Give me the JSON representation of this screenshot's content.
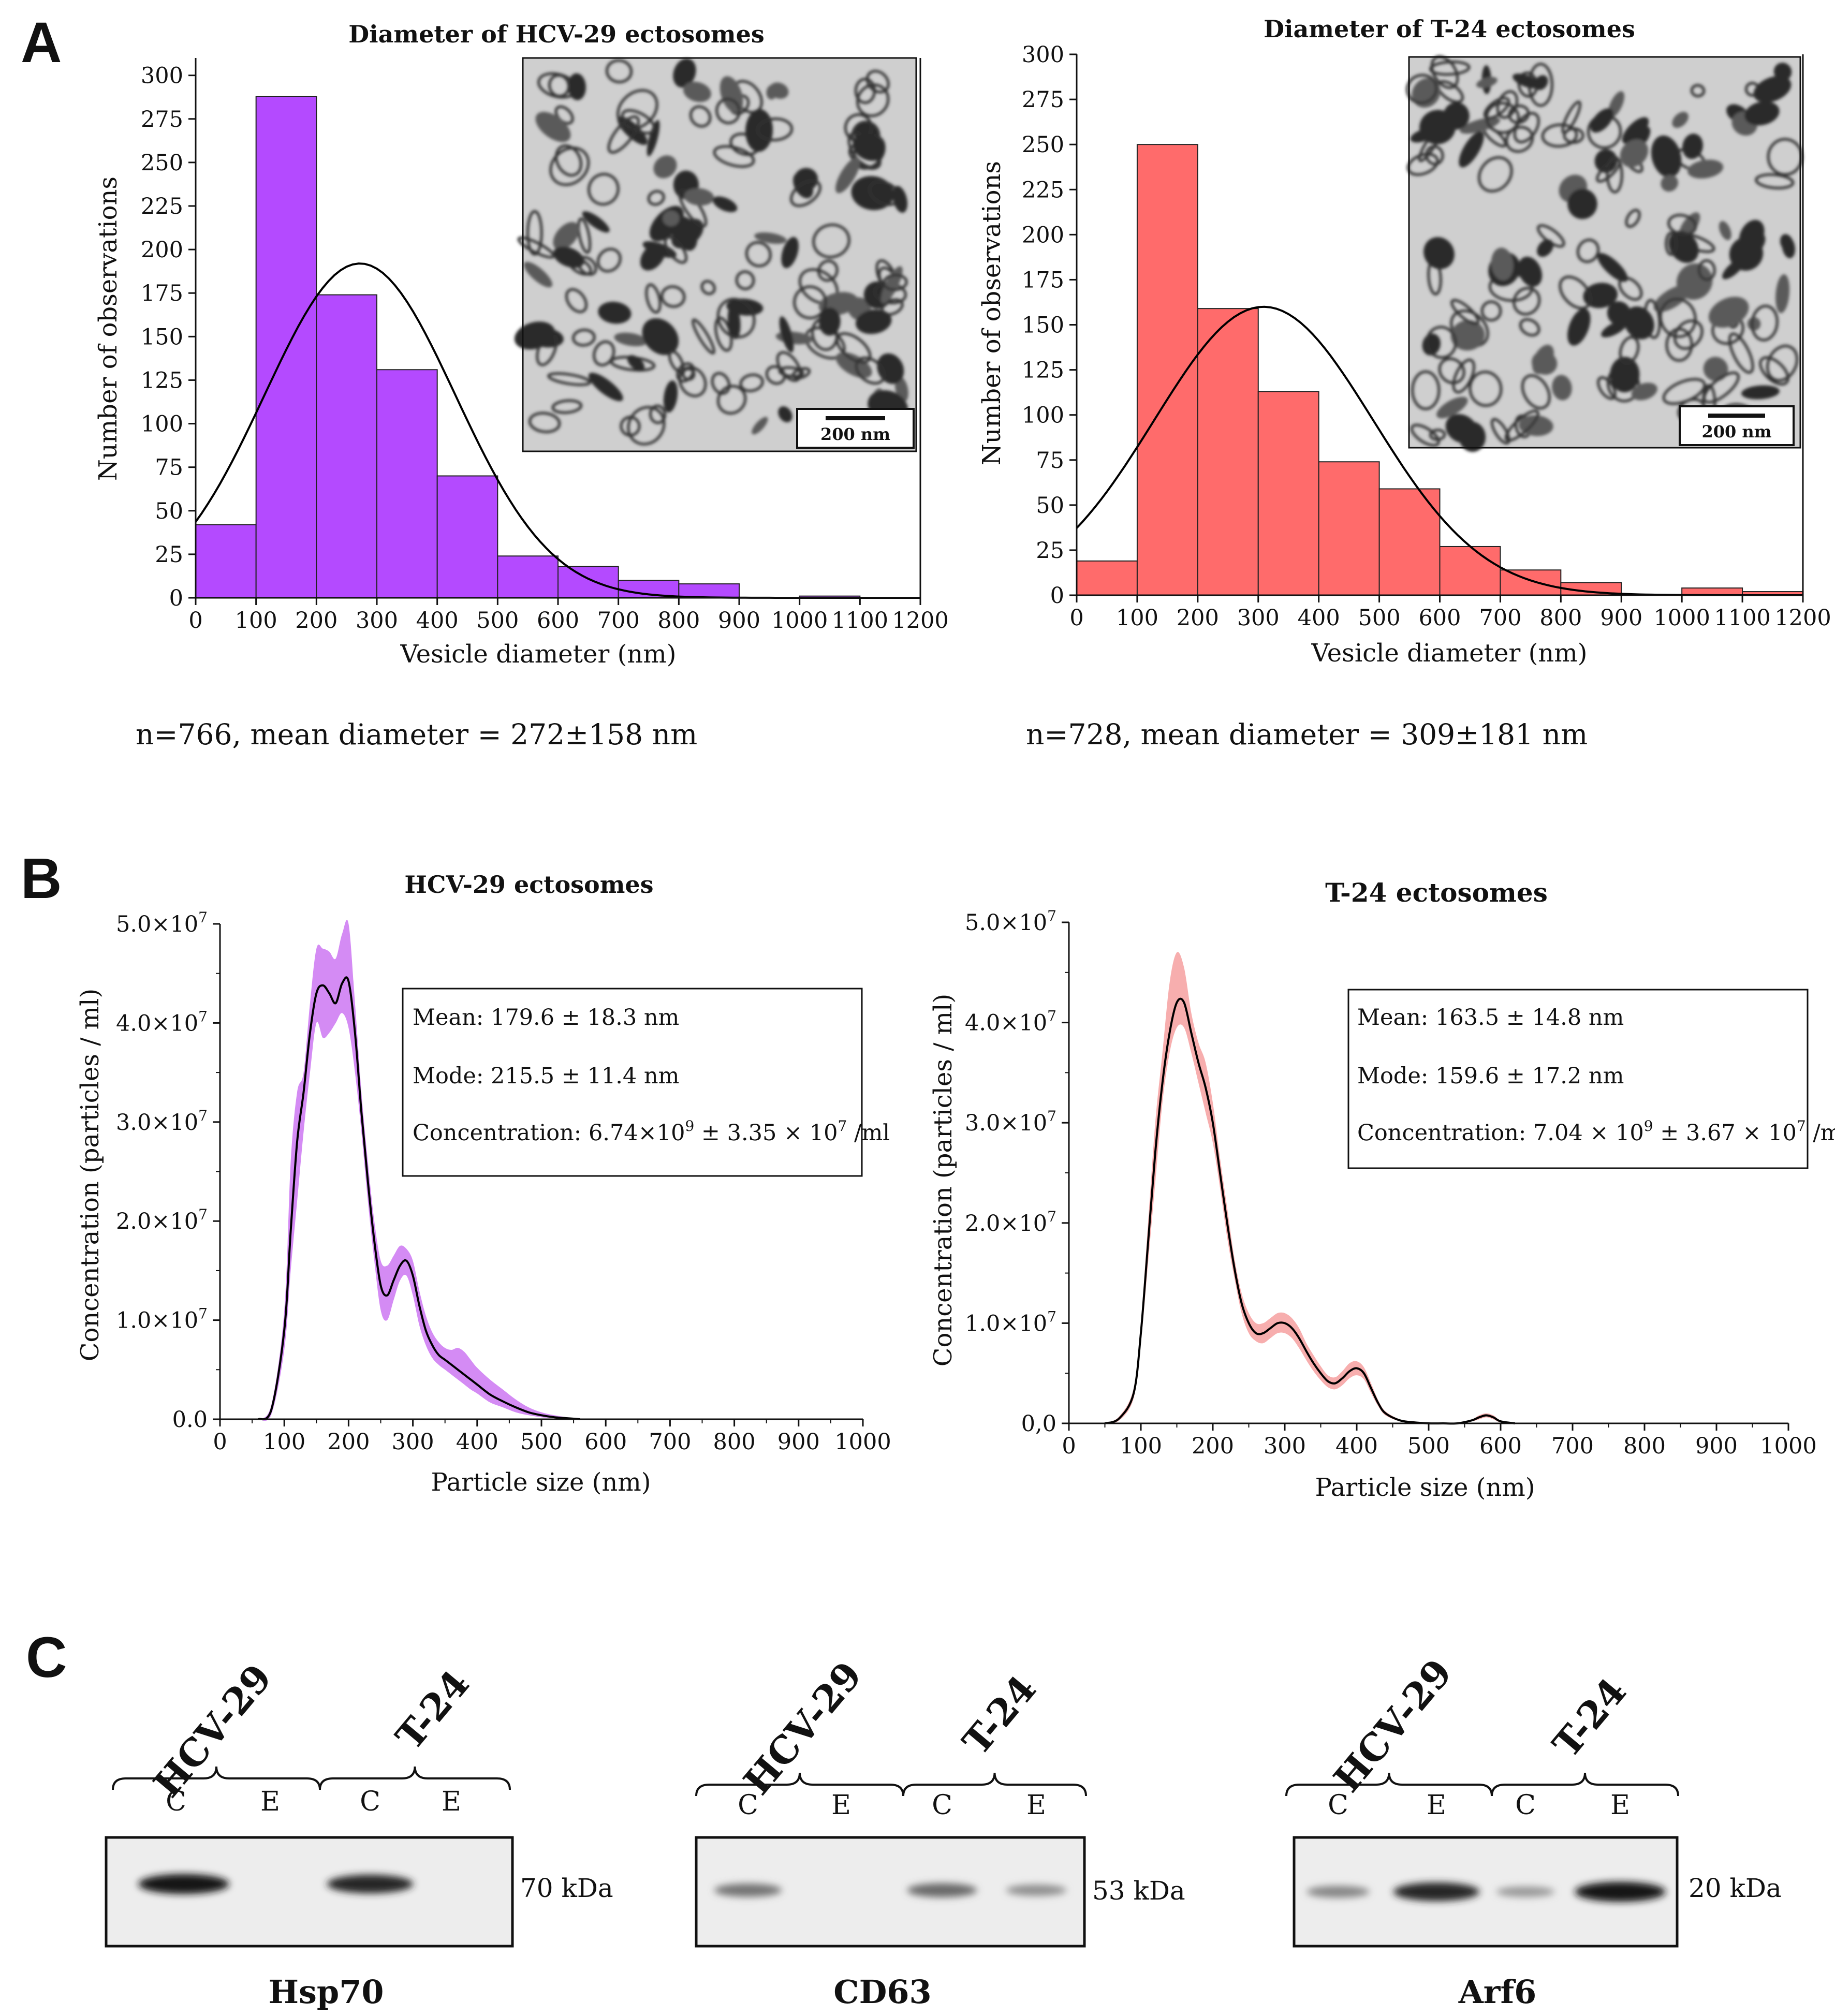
{
  "panel_labels": {
    "a": "A",
    "b": "B",
    "c": "C"
  },
  "colors": {
    "hcv": "#b44aff",
    "t24": "#ff6b6b",
    "hcv_band": "#cc77f2",
    "t24_band": "#f6a0a0",
    "curve": "#000000"
  },
  "chart_data": [
    {
      "id": "hist_hcv",
      "type": "bar",
      "title": "Diameter of HCV-29 ectosomes",
      "xlabel": "Vesicle diameter (nm)",
      "ylabel": "Number of observations",
      "bin_edges": [
        0,
        100,
        200,
        300,
        400,
        500,
        600,
        700,
        800,
        900,
        1000,
        1100
      ],
      "values": [
        42,
        288,
        174,
        131,
        70,
        24,
        18,
        10,
        8,
        0,
        1
      ],
      "xlim": [
        0,
        1200
      ],
      "ylim": [
        0,
        310
      ],
      "xticks": [
        0,
        100,
        200,
        300,
        400,
        500,
        600,
        700,
        800,
        900,
        1000,
        1100,
        1200
      ],
      "xtick_labels": [
        "0",
        "100",
        "200",
        "300",
        "400",
        "500",
        "600",
        "700",
        "800",
        "900",
        "1000",
        "1100",
        "1200"
      ],
      "yticks": [
        0,
        25,
        50,
        75,
        100,
        125,
        150,
        175,
        200,
        225,
        250,
        275,
        300
      ],
      "ytick_labels": [
        "0",
        "25",
        "50",
        "75",
        "100",
        "125",
        "150",
        "175",
        "200",
        "225",
        "250",
        "275",
        "300"
      ],
      "normal_fit": {
        "mean": 272,
        "sd": 158,
        "peak": 192
      },
      "inset": {
        "label": "TEM micrograph of HCV-29 ectosomes",
        "scale_bar": "200 nm"
      },
      "caption": "n=766, mean diameter = 272±158 nm"
    },
    {
      "id": "hist_t24",
      "type": "bar",
      "title": "Diameter of T-24 ectosomes",
      "xlabel": "Vesicle diameter (nm)",
      "ylabel": "Number of observations",
      "bin_edges": [
        0,
        100,
        200,
        300,
        400,
        500,
        600,
        700,
        800,
        900,
        1000,
        1100,
        1200
      ],
      "values": [
        19,
        250,
        159,
        113,
        74,
        59,
        27,
        14,
        7,
        0,
        4,
        2
      ],
      "xlim": [
        0,
        1200
      ],
      "ylim": [
        0,
        300
      ],
      "xticks": [
        0,
        100,
        200,
        300,
        400,
        500,
        600,
        700,
        800,
        900,
        1000,
        1100,
        1200
      ],
      "xtick_labels": [
        "0",
        "100",
        "200",
        "300",
        "400",
        "500",
        "600",
        "700",
        "800",
        "900",
        "1000",
        "1100",
        "1200"
      ],
      "yticks": [
        0,
        25,
        50,
        75,
        100,
        125,
        150,
        175,
        200,
        225,
        250,
        275,
        300
      ],
      "ytick_labels": [
        "0",
        "25",
        "50",
        "75",
        "100",
        "125",
        "150",
        "175",
        "200",
        "225",
        "250",
        "275",
        "300"
      ],
      "normal_fit": {
        "mean": 309,
        "sd": 181,
        "peak": 160
      },
      "inset": {
        "label": "TEM micrograph of T-24 ectosomes",
        "scale_bar": "200 nm"
      },
      "caption": "n=728, mean diameter = 309±181 nm"
    },
    {
      "id": "nta_hcv",
      "type": "line",
      "title": "HCV-29 ectosomes",
      "xlabel": "Particle size (nm)",
      "ylabel": "Concentration (particles / ml)",
      "x": [
        60,
        80,
        100,
        110,
        120,
        130,
        140,
        150,
        160,
        170,
        180,
        190,
        200,
        210,
        220,
        230,
        240,
        250,
        260,
        270,
        280,
        290,
        300,
        310,
        320,
        330,
        340,
        350,
        360,
        370,
        380,
        390,
        400,
        420,
        440,
        460,
        480,
        500,
        520,
        540,
        560
      ],
      "y": [
        0,
        0.1,
        0.9,
        1.9,
        2.8,
        3.3,
        3.9,
        4.3,
        4.38,
        4.3,
        4.2,
        4.4,
        4.42,
        3.9,
        3.1,
        2.4,
        1.8,
        1.35,
        1.25,
        1.4,
        1.55,
        1.6,
        1.45,
        1.15,
        0.9,
        0.75,
        0.65,
        0.6,
        0.55,
        0.5,
        0.45,
        0.4,
        0.35,
        0.25,
        0.18,
        0.12,
        0.07,
        0.04,
        0.02,
        0.01,
        0
      ],
      "lower": [
        0,
        0.05,
        0.7,
        1.5,
        2.2,
        2.9,
        3.5,
        4.0,
        3.85,
        3.9,
        4.0,
        4.1,
        3.95,
        3.5,
        2.9,
        2.2,
        1.6,
        1.1,
        1.0,
        1.2,
        1.4,
        1.45,
        1.25,
        0.95,
        0.75,
        0.62,
        0.55,
        0.5,
        0.45,
        0.4,
        0.35,
        0.3,
        0.26,
        0.17,
        0.12,
        0.07,
        0.04,
        0.02,
        0.01,
        0,
        0
      ],
      "upper": [
        0,
        0.15,
        1.1,
        2.6,
        3.3,
        3.5,
        4.2,
        4.75,
        4.75,
        4.72,
        4.65,
        4.9,
        5.0,
        4.2,
        3.3,
        2.6,
        2.0,
        1.6,
        1.55,
        1.65,
        1.75,
        1.72,
        1.6,
        1.3,
        1.05,
        0.88,
        0.78,
        0.72,
        0.7,
        0.72,
        0.68,
        0.6,
        0.52,
        0.4,
        0.3,
        0.2,
        0.12,
        0.07,
        0.04,
        0.02,
        0.01
      ],
      "y_scale_note": "values in units of 1e7 particles/ml",
      "xlim": [
        0,
        1000
      ],
      "ylim": [
        0,
        5.0
      ],
      "xticks": [
        0,
        100,
        200,
        300,
        400,
        500,
        600,
        700,
        800,
        900,
        1000
      ],
      "xtick_labels": [
        "0",
        "100",
        "200",
        "300",
        "400",
        "500",
        "600",
        "700",
        "800",
        "900",
        "1000"
      ],
      "yticks": [
        0,
        1,
        2,
        3,
        4,
        5
      ],
      "ytick_labels": [
        "0.0",
        "1.0×10",
        "2.0×10",
        "3.0×10",
        "4.0×10",
        "5.0×10"
      ],
      "ytick_exps": [
        "",
        "7",
        "7",
        "7",
        "7",
        "7"
      ],
      "legend": {
        "mean": "Mean: 179.6 ± 18.3 nm",
        "mode": "Mode: 215.5 ± 11.4 nm",
        "conc_a": "Concentration: 6.74×10",
        "conc_e1": "9",
        "conc_b": " ± 3.35 × 10",
        "conc_e2": "7",
        "conc_c": " /ml"
      }
    },
    {
      "id": "nta_t24",
      "type": "line",
      "title": "T-24 ectosomes",
      "xlabel": "Particle size (nm)",
      "ylabel": "Concentration (particles / ml)",
      "x": [
        50,
        70,
        90,
        100,
        110,
        120,
        130,
        140,
        150,
        160,
        170,
        180,
        190,
        200,
        210,
        220,
        230,
        240,
        250,
        260,
        270,
        280,
        290,
        300,
        310,
        320,
        330,
        340,
        350,
        360,
        370,
        380,
        390,
        400,
        410,
        420,
        430,
        440,
        460,
        480,
        500,
        520,
        540,
        560,
        570,
        580,
        590,
        600,
        620
      ],
      "y": [
        0,
        0.05,
        0.3,
        0.9,
        1.8,
        2.7,
        3.4,
        3.9,
        4.2,
        4.2,
        3.9,
        3.6,
        3.35,
        3.0,
        2.5,
        2.0,
        1.55,
        1.2,
        1.0,
        0.9,
        0.9,
        0.95,
        1.0,
        1.0,
        0.95,
        0.85,
        0.72,
        0.6,
        0.5,
        0.42,
        0.4,
        0.45,
        0.52,
        0.55,
        0.5,
        0.35,
        0.2,
        0.1,
        0.03,
        0.01,
        0,
        0,
        0,
        0.03,
        0.06,
        0.08,
        0.06,
        0.02,
        0
      ],
      "lower": [
        0,
        0.03,
        0.25,
        0.8,
        1.6,
        2.4,
        3.2,
        3.7,
        3.95,
        3.95,
        3.7,
        3.4,
        3.1,
        2.8,
        2.35,
        1.85,
        1.45,
        1.1,
        0.9,
        0.82,
        0.8,
        0.85,
        0.9,
        0.9,
        0.85,
        0.75,
        0.63,
        0.52,
        0.43,
        0.36,
        0.34,
        0.38,
        0.45,
        0.48,
        0.44,
        0.3,
        0.17,
        0.08,
        0.02,
        0,
        0,
        0,
        0,
        0.02,
        0.04,
        0.06,
        0.04,
        0.01,
        0
      ],
      "upper": [
        0,
        0.07,
        0.35,
        1.0,
        2.0,
        3.0,
        3.7,
        4.4,
        4.7,
        4.55,
        4.1,
        3.8,
        3.6,
        3.2,
        2.65,
        2.15,
        1.65,
        1.3,
        1.1,
        1.0,
        1.0,
        1.05,
        1.1,
        1.1,
        1.05,
        0.95,
        0.8,
        0.68,
        0.57,
        0.48,
        0.46,
        0.52,
        0.6,
        0.62,
        0.56,
        0.4,
        0.23,
        0.12,
        0.04,
        0.02,
        0,
        0,
        0,
        0.04,
        0.08,
        0.1,
        0.08,
        0.03,
        0
      ],
      "y_scale_note": "values in units of 1e7 particles/ml",
      "xlim": [
        0,
        1000
      ],
      "ylim": [
        0,
        5.0
      ],
      "xticks": [
        0,
        100,
        200,
        300,
        400,
        500,
        600,
        700,
        800,
        900,
        1000
      ],
      "xtick_labels": [
        "0",
        "100",
        "200",
        "300",
        "400",
        "500",
        "600",
        "700",
        "800",
        "900",
        "1000"
      ],
      "yticks": [
        0,
        1,
        2,
        3,
        4,
        5
      ],
      "ytick_labels": [
        "0,0",
        "1.0×10",
        "2.0×10",
        "3.0×10",
        "4.0×10",
        "5.0×10"
      ],
      "ytick_exps": [
        "",
        "7",
        "7",
        "7",
        "7",
        "7"
      ],
      "legend": {
        "mean": "Mean: 163.5 ± 14.8 nm",
        "mode": "Mode: 159.6 ± 17.2 nm",
        "conc_a": "Concentration: 7.04 × 10",
        "conc_e1": "9",
        "conc_b": " ± 3.67 × 10",
        "conc_e2": "7",
        "conc_c": " /ml"
      }
    }
  ],
  "blots": [
    {
      "id": "hsp70",
      "protein": "Hsp70",
      "kda": "70 kDa",
      "group1": "HCV-29",
      "group2": "T-24",
      "lanes": [
        "C",
        "E",
        "C",
        "E"
      ],
      "band_intensity": [
        0.95,
        0,
        0.85,
        0
      ]
    },
    {
      "id": "cd63",
      "protein": "CD63",
      "kda": "53 kDa",
      "group1": "HCV-29",
      "group2": "T-24",
      "lanes": [
        "C",
        "E",
        "C",
        "E"
      ],
      "band_intensity": [
        0.45,
        0,
        0.5,
        0.3
      ]
    },
    {
      "id": "arf6",
      "protein": "Arf6",
      "kda": "20 kDa",
      "group1": "HCV-29",
      "group2": "T-24",
      "lanes": [
        "C",
        "E",
        "C",
        "E"
      ],
      "band_intensity": [
        0.35,
        0.85,
        0.25,
        0.95
      ]
    }
  ]
}
